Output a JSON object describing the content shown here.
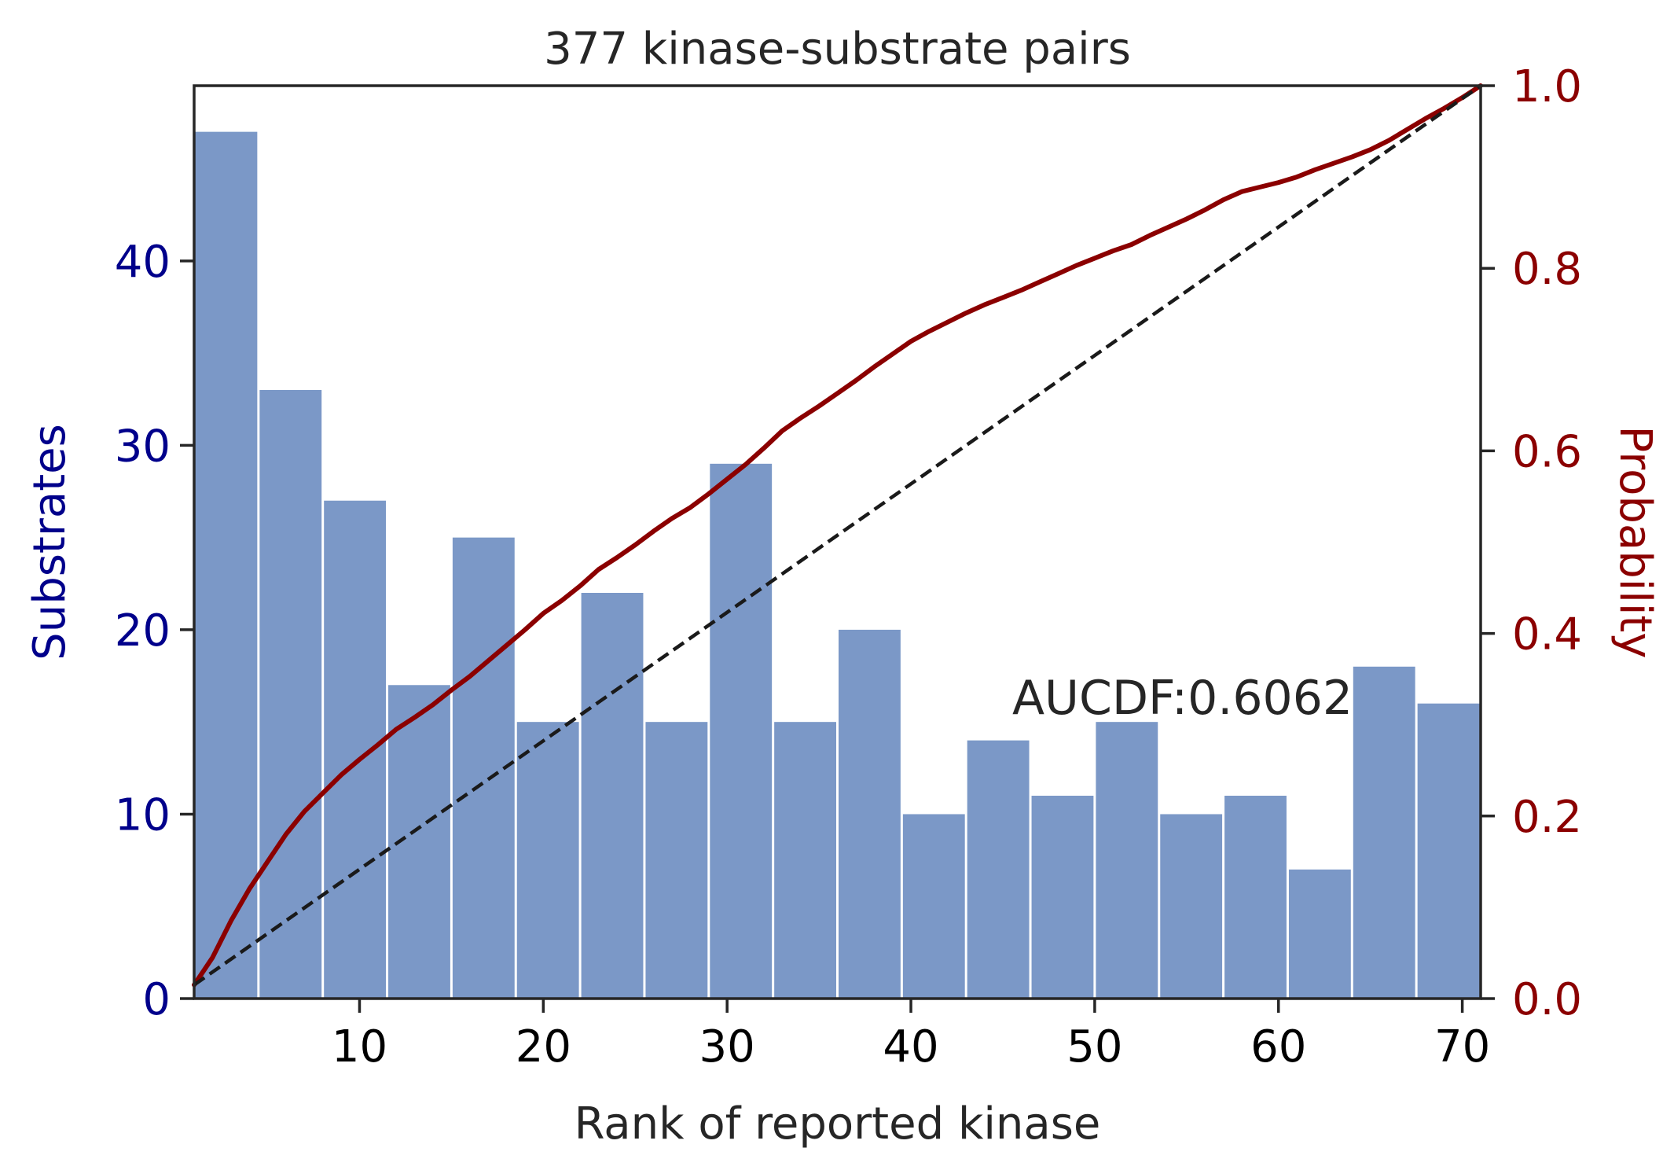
{
  "chart_data": {
    "type": "bar",
    "title": "377 kinase-substrate pairs",
    "xlabel": "Rank of reported kinase",
    "ylabel_left": "Substrates",
    "ylabel_right": "Probability",
    "annotation": "AUCDF:0.6062",
    "xlim": [
      1,
      71
    ],
    "ylim_left": [
      0,
      49.5
    ],
    "ylim_right": [
      0,
      1.0
    ],
    "x_ticks": [
      10,
      20,
      30,
      40,
      50,
      60,
      70
    ],
    "y_ticks_left": [
      0,
      10,
      20,
      30,
      40
    ],
    "y_ticks_right": [
      0.0,
      0.2,
      0.4,
      0.6,
      0.8,
      1.0
    ],
    "y_tick_labels_right": [
      "0.0",
      "0.2",
      "0.4",
      "0.6",
      "0.8",
      "1.0"
    ],
    "grid": false,
    "bars": {
      "bin_edges": [
        1.0,
        4.5,
        8.0,
        11.5,
        15.0,
        18.5,
        22.0,
        25.5,
        29.0,
        32.5,
        36.0,
        39.5,
        43.0,
        46.5,
        50.0,
        53.5,
        57.0,
        60.5,
        64.0,
        67.5,
        71.0
      ],
      "values": [
        47,
        33,
        27,
        17,
        25,
        15,
        22,
        15,
        29,
        15,
        20,
        10,
        14,
        11,
        15,
        10,
        11,
        7,
        18,
        16
      ]
    },
    "series": [
      {
        "type": "line",
        "axis": "right",
        "x": [
          1,
          2,
          3,
          4,
          5,
          6,
          7,
          8,
          9,
          10,
          11,
          12,
          13,
          14,
          15,
          16,
          17,
          18,
          19,
          20,
          21,
          22,
          23,
          24,
          25,
          26,
          27,
          28,
          29,
          30,
          31,
          32,
          33,
          34,
          35,
          36,
          37,
          38,
          39,
          40,
          41,
          42,
          43,
          44,
          45,
          46,
          47,
          48,
          49,
          50,
          51,
          52,
          53,
          54,
          55,
          56,
          57,
          58,
          59,
          60,
          61,
          62,
          63,
          64,
          65,
          66,
          67,
          68,
          69,
          70,
          71
        ],
        "y": [
          0.015,
          0.045,
          0.085,
          0.12,
          0.15,
          0.18,
          0.205,
          0.225,
          0.245,
          0.262,
          0.278,
          0.295,
          0.308,
          0.322,
          0.338,
          0.353,
          0.37,
          0.387,
          0.404,
          0.422,
          0.436,
          0.452,
          0.47,
          0.483,
          0.497,
          0.512,
          0.526,
          0.538,
          0.553,
          0.569,
          0.585,
          0.603,
          0.622,
          0.636,
          0.649,
          0.663,
          0.677,
          0.692,
          0.706,
          0.72,
          0.731,
          0.741,
          0.751,
          0.76,
          0.768,
          0.776,
          0.785,
          0.794,
          0.803,
          0.811,
          0.819,
          0.826,
          0.836,
          0.845,
          0.854,
          0.864,
          0.875,
          0.884,
          0.889,
          0.894,
          0.9,
          0.908,
          0.915,
          0.922,
          0.93,
          0.94,
          0.952,
          0.964,
          0.975,
          0.987,
          1.0
        ]
      },
      {
        "type": "line",
        "axis": "right",
        "style": "dashed",
        "x": [
          1,
          71
        ],
        "y": [
          0.015,
          1.0
        ]
      }
    ],
    "colors": {
      "bars": "#7b98c7",
      "cdf_line": "#8b0000",
      "diagonal": "#1a1a1a",
      "left_axis": "#00008b",
      "right_axis": "#8b0000",
      "text": "#262626"
    }
  }
}
